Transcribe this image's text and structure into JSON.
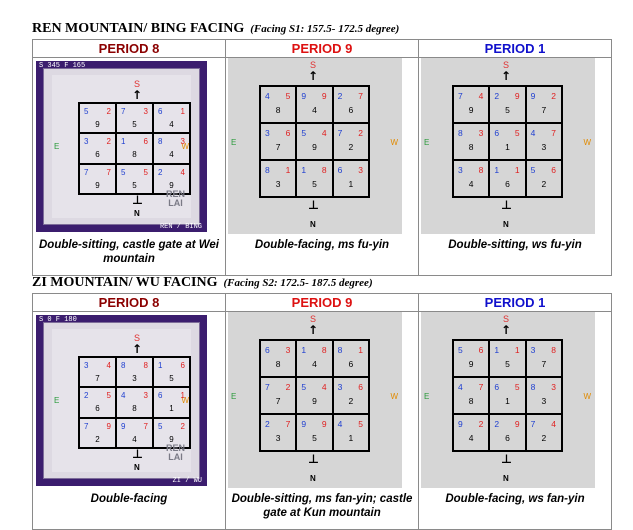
{
  "sections": [
    {
      "title": "REN MOUNTAIN/ BING FACING",
      "subtitle": "(Facing S1: 157.5- 172.5 degree)",
      "charts": [
        {
          "period": "PERIOD 8",
          "period_color": "#8b0000",
          "style": "framed",
          "tag_top": "S 345 F 165",
          "tag_bot": "REN / BING",
          "logo": "REN\nLAI",
          "caption": "Double-sitting, castle gate at Wei mountain",
          "palaces": [
            [
              "5",
              "2",
              "9"
            ],
            [
              "7",
              "3",
              "5"
            ],
            [
              "6",
              "1",
              "4"
            ],
            [
              "3",
              "2",
              "6"
            ],
            [
              "1",
              "6",
              "8"
            ],
            [
              "8",
              "3",
              "4"
            ],
            [
              "7",
              "7",
              "9"
            ],
            [
              "5",
              "5",
              "5"
            ],
            [
              "2",
              "4",
              "9"
            ]
          ]
        },
        {
          "period": "PERIOD 9",
          "period_color": "#dd1111",
          "style": "grey",
          "caption": "Double-facing, ms fu-yin",
          "palaces": [
            [
              "4",
              "5",
              "8"
            ],
            [
              "9",
              "9",
              "4"
            ],
            [
              "2",
              "7",
              "6"
            ],
            [
              "3",
              "6",
              "7"
            ],
            [
              "5",
              "4",
              "9"
            ],
            [
              "7",
              "2",
              "2"
            ],
            [
              "8",
              "1",
              "3"
            ],
            [
              "1",
              "8",
              "5"
            ],
            [
              "6",
              "3",
              "1"
            ]
          ]
        },
        {
          "period": "PERIOD 1",
          "period_color": "#1010cc",
          "style": "grey",
          "caption": "Double-sitting, ws fu-yin",
          "palaces": [
            [
              "7",
              "4",
              "9"
            ],
            [
              "2",
              "9",
              "5"
            ],
            [
              "9",
              "2",
              "7"
            ],
            [
              "8",
              "3",
              "8"
            ],
            [
              "6",
              "5",
              "1"
            ],
            [
              "4",
              "7",
              "3"
            ],
            [
              "3",
              "8",
              "4"
            ],
            [
              "1",
              "1",
              "6"
            ],
            [
              "5",
              "6",
              "2"
            ]
          ]
        }
      ]
    },
    {
      "title": "ZI MOUNTAIN/ WU FACING",
      "subtitle": "(Facing S2: 172.5- 187.5 degree)",
      "charts": [
        {
          "period": "PERIOD 8",
          "period_color": "#8b0000",
          "style": "framed",
          "tag_top": "S 0 F 180",
          "tag_bot": "ZI / WU",
          "logo": "REN\nLAI",
          "caption": "Double-facing",
          "palaces": [
            [
              "3",
              "4",
              "7"
            ],
            [
              "8",
              "8",
              "3"
            ],
            [
              "1",
              "6",
              "5"
            ],
            [
              "2",
              "5",
              "6"
            ],
            [
              "4",
              "3",
              "8"
            ],
            [
              "6",
              "1",
              "1"
            ],
            [
              "7",
              "9",
              "2"
            ],
            [
              "9",
              "7",
              "4"
            ],
            [
              "5",
              "2",
              "9"
            ]
          ]
        },
        {
          "period": "PERIOD 9",
          "period_color": "#dd1111",
          "style": "grey",
          "caption": "Double-sitting, ms fan-yin; castle gate at Kun mountain",
          "palaces": [
            [
              "6",
              "3",
              "8"
            ],
            [
              "1",
              "8",
              "4"
            ],
            [
              "8",
              "1",
              "6"
            ],
            [
              "7",
              "2",
              "7"
            ],
            [
              "5",
              "4",
              "9"
            ],
            [
              "3",
              "6",
              "2"
            ],
            [
              "2",
              "7",
              "3"
            ],
            [
              "9",
              "9",
              "5"
            ],
            [
              "4",
              "5",
              "1"
            ]
          ]
        },
        {
          "period": "PERIOD 1",
          "period_color": "#1010cc",
          "style": "grey",
          "caption": "Double-facing, ws fan-yin",
          "palaces": [
            [
              "5",
              "6",
              "9"
            ],
            [
              "1",
              "1",
              "5"
            ],
            [
              "3",
              "8",
              "7"
            ],
            [
              "4",
              "7",
              "8"
            ],
            [
              "6",
              "5",
              "1"
            ],
            [
              "8",
              "3",
              "3"
            ],
            [
              "9",
              "2",
              "4"
            ],
            [
              "2",
              "9",
              "6"
            ],
            [
              "7",
              "4",
              "2"
            ]
          ]
        }
      ]
    }
  ],
  "compass": {
    "south": "S",
    "north": "N",
    "east": "E",
    "west": "W"
  }
}
